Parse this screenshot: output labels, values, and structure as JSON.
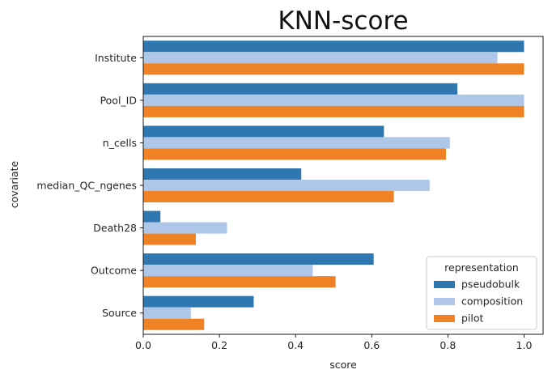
{
  "chart_data": {
    "type": "bar",
    "orientation": "horizontal",
    "title": "KNN-score",
    "xlabel": "score",
    "ylabel": "covariate",
    "categories": [
      "Institute",
      "Pool_ID",
      "n_cells",
      "median_QC_ngenes",
      "Death28",
      "Outcome",
      "Source"
    ],
    "series": [
      {
        "name": "pseudobulk",
        "color": "#2e77b0",
        "values": [
          1.0,
          0.825,
          0.632,
          0.415,
          0.045,
          0.605,
          0.29
        ]
      },
      {
        "name": "composition",
        "color": "#aec7e8",
        "values": [
          0.93,
          1.0,
          0.805,
          0.752,
          0.22,
          0.445,
          0.125
        ]
      },
      {
        "name": "pilot",
        "color": "#ee8225",
        "values": [
          1.0,
          1.0,
          0.795,
          0.658,
          0.138,
          0.505,
          0.16
        ]
      }
    ],
    "xlim": [
      0,
      1.05
    ],
    "xticks": [
      "0.0",
      "0.2",
      "0.4",
      "0.6",
      "0.8",
      "1.0"
    ],
    "xtick_values": [
      0,
      0.2,
      0.4,
      0.6,
      0.8,
      1.0
    ],
    "grid": false,
    "legend": {
      "title": "representation",
      "position": "lower-right"
    }
  }
}
